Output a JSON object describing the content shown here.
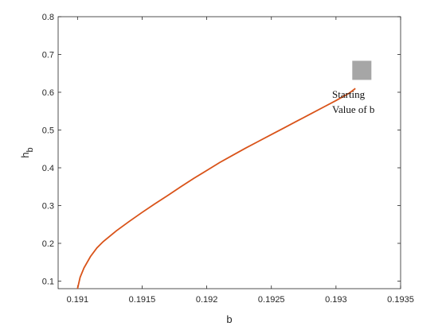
{
  "chart_data": {
    "type": "line",
    "title": "",
    "xlabel": "b",
    "ylabel": "h",
    "ylabel_sub": "b",
    "xlim": [
      0.19085,
      0.1935
    ],
    "ylim": [
      0.08,
      0.8
    ],
    "xticks": [
      0.191,
      0.1915,
      0.192,
      0.1925,
      0.193,
      0.1935
    ],
    "xtick_labels": [
      "0.191",
      "0.1915",
      "0.192",
      "0.1925",
      "0.193",
      "0.1935"
    ],
    "yticks": [
      0.1,
      0.2,
      0.3,
      0.4,
      0.5,
      0.6,
      0.7,
      0.8
    ],
    "ytick_labels": [
      "0.1",
      "0.2",
      "0.3",
      "0.4",
      "0.5",
      "0.6",
      "0.7",
      "0.8"
    ],
    "grid": false,
    "series": [
      {
        "x": [
          0.191,
          0.19102,
          0.19105,
          0.1911,
          0.19115,
          0.1912,
          0.1913,
          0.1914,
          0.1915,
          0.1916,
          0.1917,
          0.1918,
          0.1919,
          0.192,
          0.1921,
          0.1922,
          0.1923,
          0.1924,
          0.1925,
          0.1926,
          0.1927,
          0.1928,
          0.1929,
          0.193,
          0.1931,
          0.19315
        ],
        "y": [
          0.08,
          0.11,
          0.135,
          0.165,
          0.188,
          0.205,
          0.233,
          0.258,
          0.282,
          0.305,
          0.327,
          0.35,
          0.372,
          0.393,
          0.414,
          0.433,
          0.452,
          0.47,
          0.488,
          0.506,
          0.524,
          0.542,
          0.56,
          0.578,
          0.597,
          0.61
        ],
        "color": "#d95319"
      }
    ],
    "marker": {
      "x": 0.1932,
      "y": 0.658,
      "shape": "square",
      "color": "#a6a6a6"
    },
    "annotation": {
      "lines": [
        "Starting",
        "Value of b"
      ],
      "x": 0.19297,
      "y": 0.585
    }
  }
}
